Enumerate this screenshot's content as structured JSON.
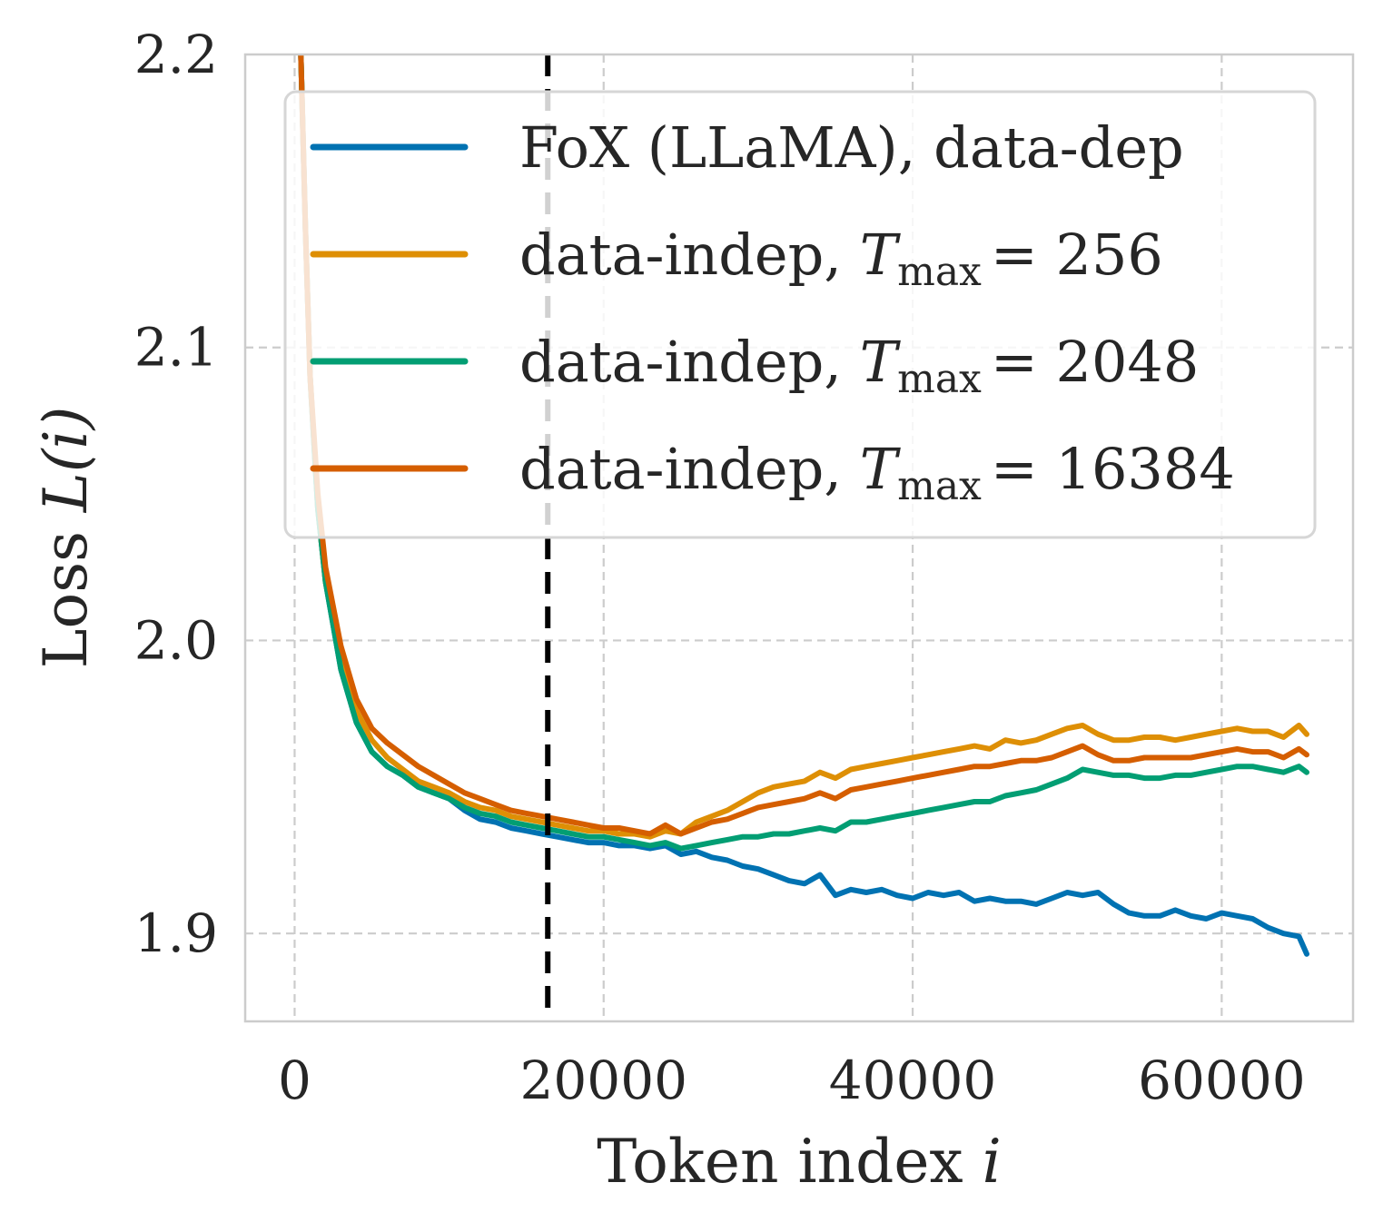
{
  "chart_data": {
    "type": "line",
    "xlabel": "Token index",
    "xlabel_var": "i",
    "ylabel": "Loss",
    "ylabel_var": "L(i)",
    "xlim": [
      -3200,
      68500
    ],
    "ylim": [
      1.87,
      2.2
    ],
    "xticks": [
      0,
      20000,
      40000,
      60000
    ],
    "yticks": [
      1.9,
      2.0,
      2.1,
      2.2
    ],
    "ytick_labels": [
      "1.9",
      "2.0",
      "2.1",
      "2.2"
    ],
    "grid": true,
    "legend_position": "top-right",
    "vline": {
      "x": 16384,
      "style": "dashed",
      "color": "#000000"
    },
    "series": [
      {
        "name": "FoX (LLaMA), data-dep",
        "name_prefix": "FoX (LLaMA), data-dep",
        "name_sub": "",
        "name_suffix": "",
        "color": "#0072b2",
        "x": [
          400,
          700,
          1000,
          1500,
          2000,
          3000,
          4000,
          5000,
          6000,
          7000,
          8000,
          9000,
          10000,
          11000,
          12000,
          13000,
          14000,
          15000,
          16000,
          17000,
          18000,
          19000,
          20000,
          21000,
          22000,
          23000,
          24000,
          25000,
          26000,
          27000,
          28000,
          29000,
          30000,
          31000,
          32000,
          33000,
          34000,
          35000,
          36000,
          37000,
          38000,
          39000,
          40000,
          41000,
          42000,
          43000,
          44000,
          45000,
          46000,
          47000,
          48000,
          49000,
          50000,
          51000,
          52000,
          53000,
          54000,
          55000,
          56000,
          57000,
          58000,
          59000,
          60000,
          61000,
          62000,
          63000,
          64000,
          65000,
          65500
        ],
        "y": [
          2.2,
          2.14,
          2.09,
          2.045,
          2.02,
          1.99,
          1.972,
          1.962,
          1.957,
          1.954,
          1.95,
          1.948,
          1.946,
          1.942,
          1.939,
          1.938,
          1.936,
          1.935,
          1.934,
          1.933,
          1.932,
          1.931,
          1.931,
          1.93,
          1.93,
          1.929,
          1.93,
          1.927,
          1.928,
          1.926,
          1.925,
          1.923,
          1.922,
          1.92,
          1.918,
          1.917,
          1.92,
          1.913,
          1.915,
          1.914,
          1.915,
          1.913,
          1.912,
          1.914,
          1.913,
          1.914,
          1.911,
          1.912,
          1.911,
          1.911,
          1.91,
          1.912,
          1.914,
          1.913,
          1.914,
          1.91,
          1.907,
          1.906,
          1.906,
          1.908,
          1.906,
          1.905,
          1.907,
          1.906,
          1.905,
          1.902,
          1.9,
          1.899,
          1.893
        ]
      },
      {
        "name": "data-indep, T_max = 256",
        "name_prefix": "data-indep, ",
        "name_sub": "max",
        "name_suffix": "= 256",
        "color": "#de8f05",
        "x": [
          400,
          700,
          1000,
          1500,
          2000,
          3000,
          4000,
          5000,
          6000,
          7000,
          8000,
          9000,
          10000,
          11000,
          12000,
          13000,
          14000,
          15000,
          16000,
          17000,
          18000,
          19000,
          20000,
          21000,
          22000,
          23000,
          24000,
          25000,
          26000,
          27000,
          28000,
          29000,
          30000,
          31000,
          32000,
          33000,
          34000,
          35000,
          36000,
          37000,
          38000,
          39000,
          40000,
          41000,
          42000,
          43000,
          44000,
          45000,
          46000,
          47000,
          48000,
          49000,
          50000,
          51000,
          52000,
          53000,
          54000,
          55000,
          56000,
          57000,
          58000,
          59000,
          60000,
          61000,
          62000,
          63000,
          64000,
          65000,
          65500
        ],
        "y": [
          2.2,
          2.14,
          2.09,
          2.045,
          2.02,
          1.994,
          1.976,
          1.966,
          1.96,
          1.956,
          1.952,
          1.95,
          1.948,
          1.945,
          1.943,
          1.942,
          1.94,
          1.939,
          1.938,
          1.937,
          1.936,
          1.935,
          1.935,
          1.934,
          1.934,
          1.933,
          1.935,
          1.934,
          1.938,
          1.94,
          1.942,
          1.945,
          1.948,
          1.95,
          1.951,
          1.952,
          1.955,
          1.953,
          1.956,
          1.957,
          1.958,
          1.959,
          1.96,
          1.961,
          1.962,
          1.963,
          1.964,
          1.963,
          1.966,
          1.965,
          1.966,
          1.968,
          1.97,
          1.971,
          1.968,
          1.966,
          1.966,
          1.967,
          1.967,
          1.966,
          1.967,
          1.968,
          1.969,
          1.97,
          1.969,
          1.969,
          1.967,
          1.971,
          1.968
        ]
      },
      {
        "name": "data-indep, T_max = 2048",
        "name_prefix": "data-indep, ",
        "name_sub": "max",
        "name_suffix": "= 2048",
        "color": "#029e73",
        "x": [
          400,
          700,
          1000,
          1500,
          2000,
          3000,
          4000,
          5000,
          6000,
          7000,
          8000,
          9000,
          10000,
          11000,
          12000,
          13000,
          14000,
          15000,
          16000,
          17000,
          18000,
          19000,
          20000,
          21000,
          22000,
          23000,
          24000,
          25000,
          26000,
          27000,
          28000,
          29000,
          30000,
          31000,
          32000,
          33000,
          34000,
          35000,
          36000,
          37000,
          38000,
          39000,
          40000,
          41000,
          42000,
          43000,
          44000,
          45000,
          46000,
          47000,
          48000,
          49000,
          50000,
          51000,
          52000,
          53000,
          54000,
          55000,
          56000,
          57000,
          58000,
          59000,
          60000,
          61000,
          62000,
          63000,
          64000,
          65000,
          65500
        ],
        "y": [
          2.2,
          2.14,
          2.09,
          2.045,
          2.02,
          1.99,
          1.972,
          1.962,
          1.957,
          1.954,
          1.95,
          1.948,
          1.946,
          1.943,
          1.941,
          1.94,
          1.938,
          1.937,
          1.936,
          1.935,
          1.934,
          1.933,
          1.933,
          1.932,
          1.931,
          1.93,
          1.931,
          1.929,
          1.93,
          1.931,
          1.932,
          1.933,
          1.933,
          1.934,
          1.934,
          1.935,
          1.936,
          1.935,
          1.938,
          1.938,
          1.939,
          1.94,
          1.941,
          1.942,
          1.943,
          1.944,
          1.945,
          1.945,
          1.947,
          1.948,
          1.949,
          1.951,
          1.953,
          1.956,
          1.955,
          1.954,
          1.954,
          1.953,
          1.953,
          1.954,
          1.954,
          1.955,
          1.956,
          1.957,
          1.957,
          1.956,
          1.955,
          1.957,
          1.955
        ]
      },
      {
        "name": "data-indep, T_max = 16384",
        "name_prefix": "data-indep, ",
        "name_sub": "max",
        "name_suffix": "= 16384",
        "color": "#d55e00",
        "x": [
          400,
          700,
          1000,
          1500,
          2000,
          3000,
          4000,
          5000,
          6000,
          7000,
          8000,
          9000,
          10000,
          11000,
          12000,
          13000,
          14000,
          15000,
          16000,
          17000,
          18000,
          19000,
          20000,
          21000,
          22000,
          23000,
          24000,
          25000,
          26000,
          27000,
          28000,
          29000,
          30000,
          31000,
          32000,
          33000,
          34000,
          35000,
          36000,
          37000,
          38000,
          39000,
          40000,
          41000,
          42000,
          43000,
          44000,
          45000,
          46000,
          47000,
          48000,
          49000,
          50000,
          51000,
          52000,
          53000,
          54000,
          55000,
          56000,
          57000,
          58000,
          59000,
          60000,
          61000,
          62000,
          63000,
          64000,
          65000,
          65500
        ],
        "y": [
          2.2,
          2.14,
          2.09,
          2.05,
          2.025,
          1.998,
          1.98,
          1.97,
          1.965,
          1.961,
          1.957,
          1.954,
          1.951,
          1.948,
          1.946,
          1.944,
          1.942,
          1.941,
          1.94,
          1.939,
          1.938,
          1.937,
          1.936,
          1.936,
          1.935,
          1.934,
          1.937,
          1.934,
          1.936,
          1.938,
          1.939,
          1.941,
          1.943,
          1.944,
          1.945,
          1.946,
          1.948,
          1.946,
          1.949,
          1.95,
          1.951,
          1.952,
          1.953,
          1.954,
          1.955,
          1.956,
          1.957,
          1.957,
          1.958,
          1.959,
          1.959,
          1.96,
          1.962,
          1.964,
          1.961,
          1.959,
          1.959,
          1.96,
          1.96,
          1.96,
          1.96,
          1.961,
          1.962,
          1.963,
          1.962,
          1.962,
          1.96,
          1.963,
          1.961
        ]
      }
    ]
  }
}
